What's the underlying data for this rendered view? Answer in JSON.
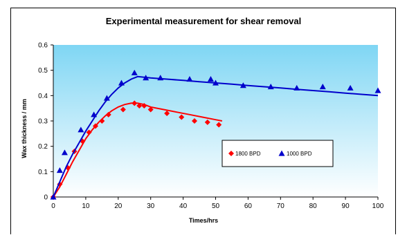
{
  "chart_data": {
    "type": "scatter",
    "title": "Experimental measurement for shear removal",
    "xlabel": "Times/hrs",
    "ylabel": "Wax thickness / mm",
    "xlim": [
      0,
      100
    ],
    "ylim": [
      0,
      0.6
    ],
    "xticks": [
      0,
      10,
      20,
      30,
      40,
      50,
      60,
      70,
      80,
      90,
      100
    ],
    "xtick_labels": [
      "0",
      "10",
      "20",
      "30",
      "40",
      "50",
      "60",
      "70",
      "80",
      "90",
      "100"
    ],
    "yticks": [
      0,
      0.1,
      0.2,
      0.3,
      0.4,
      0.5,
      0.6
    ],
    "ytick_labels": [
      "0",
      "0.1",
      "0.2",
      "0.3",
      "0.4",
      "0.5",
      "0.6"
    ],
    "grid": false,
    "legend_position": "center-right",
    "plot_background": "gradient light blue",
    "series": [
      {
        "name": "1800 BPD",
        "color": "#ff0000",
        "marker": "diamond",
        "points": [
          [
            0,
            0
          ],
          [
            2,
            0.05
          ],
          [
            4.5,
            0.115
          ],
          [
            6.5,
            0.18
          ],
          [
            9,
            0.22
          ],
          [
            11,
            0.255
          ],
          [
            13,
            0.28
          ],
          [
            15,
            0.3
          ],
          [
            17,
            0.325
          ],
          [
            21.5,
            0.345
          ],
          [
            25,
            0.37
          ],
          [
            26.5,
            0.36
          ],
          [
            28,
            0.36
          ],
          [
            30,
            0.345
          ],
          [
            35,
            0.33
          ],
          [
            39.5,
            0.315
          ],
          [
            43.5,
            0.3
          ],
          [
            47.5,
            0.295
          ],
          [
            51,
            0.285
          ]
        ],
        "fit_curve": [
          [
            0,
            0
          ],
          [
            2,
            0.04
          ],
          [
            4,
            0.09
          ],
          [
            6,
            0.14
          ],
          [
            8,
            0.185
          ],
          [
            10,
            0.23
          ],
          [
            12,
            0.265
          ],
          [
            14,
            0.295
          ],
          [
            16,
            0.32
          ],
          [
            18,
            0.34
          ],
          [
            20,
            0.355
          ],
          [
            22,
            0.365
          ],
          [
            24,
            0.37
          ],
          [
            26,
            0.37
          ],
          [
            28,
            0.365
          ],
          [
            30,
            0.355
          ],
          [
            34,
            0.345
          ],
          [
            38,
            0.335
          ],
          [
            42,
            0.325
          ],
          [
            46,
            0.315
          ],
          [
            50,
            0.305
          ],
          [
            52,
            0.3
          ]
        ]
      },
      {
        "name": "1000 BPD",
        "color": "#0000cc",
        "marker": "triangle",
        "points": [
          [
            0,
            0
          ],
          [
            2,
            0.105
          ],
          [
            3.5,
            0.175
          ],
          [
            8.5,
            0.265
          ],
          [
            12.5,
            0.325
          ],
          [
            16.5,
            0.39
          ],
          [
            21,
            0.45
          ],
          [
            25,
            0.49
          ],
          [
            28.5,
            0.47
          ],
          [
            33,
            0.47
          ],
          [
            42,
            0.465
          ],
          [
            48.5,
            0.465
          ],
          [
            50,
            0.45
          ],
          [
            58.5,
            0.44
          ],
          [
            67,
            0.435
          ],
          [
            75,
            0.43
          ],
          [
            83,
            0.435
          ],
          [
            91.5,
            0.43
          ],
          [
            100,
            0.42
          ]
        ],
        "fit_curve": [
          [
            0,
            0
          ],
          [
            2,
            0.06
          ],
          [
            4,
            0.12
          ],
          [
            6,
            0.17
          ],
          [
            8,
            0.215
          ],
          [
            10,
            0.26
          ],
          [
            12,
            0.3
          ],
          [
            14,
            0.34
          ],
          [
            16,
            0.375
          ],
          [
            18,
            0.405
          ],
          [
            20,
            0.43
          ],
          [
            22,
            0.45
          ],
          [
            24,
            0.465
          ],
          [
            26,
            0.475
          ],
          [
            30,
            0.47
          ],
          [
            35,
            0.465
          ],
          [
            40,
            0.46
          ],
          [
            45,
            0.455
          ],
          [
            50,
            0.45
          ],
          [
            55,
            0.445
          ],
          [
            60,
            0.44
          ],
          [
            65,
            0.435
          ],
          [
            70,
            0.43
          ],
          [
            75,
            0.425
          ],
          [
            80,
            0.42
          ],
          [
            85,
            0.415
          ],
          [
            90,
            0.41
          ],
          [
            95,
            0.405
          ],
          [
            100,
            0.4
          ]
        ]
      }
    ]
  }
}
